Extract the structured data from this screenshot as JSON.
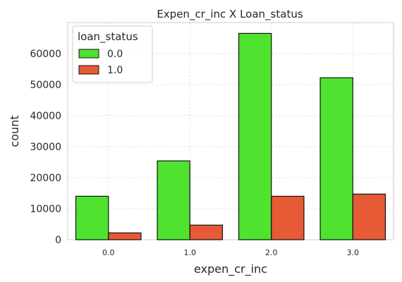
{
  "chart_data": {
    "type": "bar",
    "title": "Expen_cr_inc X Loan_status",
    "xlabel": "expen_cr_inc",
    "ylabel": "count",
    "categories": [
      "0.0",
      "1.0",
      "2.0",
      "3.0"
    ],
    "series": [
      {
        "name": "0.0",
        "color": "#4fe32f",
        "values": [
          14000,
          25400,
          66500,
          52200
        ]
      },
      {
        "name": "1.0",
        "color": "#e65a35",
        "values": [
          2200,
          4700,
          14000,
          14700
        ]
      }
    ],
    "ylim": [
      0,
      70000
    ],
    "yticks": [
      0,
      10000,
      20000,
      30000,
      40000,
      50000,
      60000
    ],
    "grid": true,
    "legend": {
      "title": "loan_status",
      "placement": "top-left"
    }
  }
}
